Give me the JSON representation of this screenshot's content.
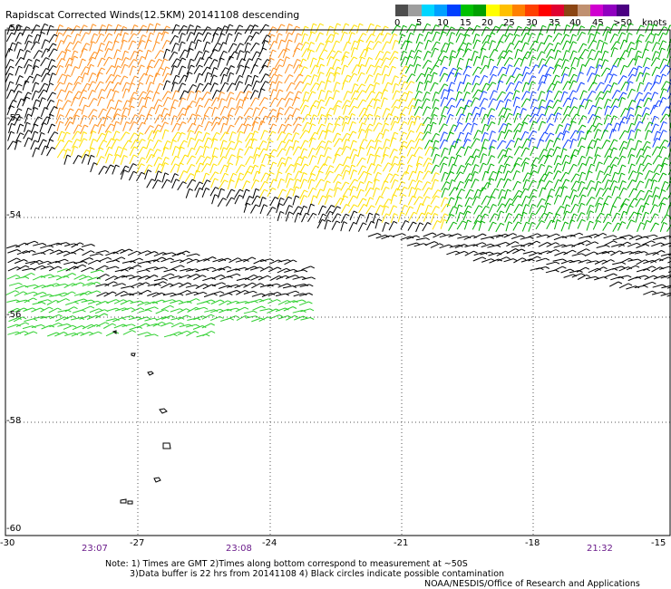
{
  "title": "Rapidscat Corrected Winds(12.5KM) 20141108 descending",
  "colorbar": {
    "colors": [
      "#4d4d4d",
      "#9e9e9e",
      "#00d6ff",
      "#00a0ff",
      "#0040ff",
      "#00c000",
      "#00a000",
      "#ffff00",
      "#ffc000",
      "#ff8000",
      "#ff4000",
      "#ff0000",
      "#e00030",
      "#8b4513",
      "#c09070",
      "#d000d0",
      "#9000c0",
      "#4b0082"
    ],
    "labels": [
      "0",
      "5",
      "10",
      "15",
      "20",
      "25",
      "30",
      "35",
      "40",
      "45",
      ">50"
    ],
    "unit": "knots"
  },
  "map": {
    "lat_labels": [
      "-50",
      "-52",
      "-54",
      "-56",
      "-58",
      "-60"
    ],
    "lon_labels": [
      "-30",
      "-27",
      "-24",
      "-21",
      "-18",
      "-15"
    ],
    "time_labels": [
      "23:07",
      "23:08",
      "21:32"
    ]
  },
  "notes": {
    "line1": "Note: 1) Times are GMT 2)Times along bottom correspond to measurement at ~50S",
    "line2": "3)Data buffer is 22 hrs from 20141108 4) Black circles indicate possible contamination"
  },
  "credit": "NOAA/NESDIS/Office of Research and Applications",
  "wind_regions": [
    {
      "name": "northwest-orange",
      "color": "#ff9020",
      "speed_kt": 27
    },
    {
      "name": "north-yellow",
      "color": "#ffe000",
      "speed_kt": 22
    },
    {
      "name": "northeast-green",
      "color": "#00b000",
      "speed_kt": 17
    },
    {
      "name": "northeast-blue",
      "color": "#1040ff",
      "speed_kt": 13
    },
    {
      "name": "contaminated-black",
      "color": "#000000",
      "speed_kt": 0
    },
    {
      "name": "southwest-green",
      "color": "#30d030",
      "speed_kt": 18
    }
  ]
}
